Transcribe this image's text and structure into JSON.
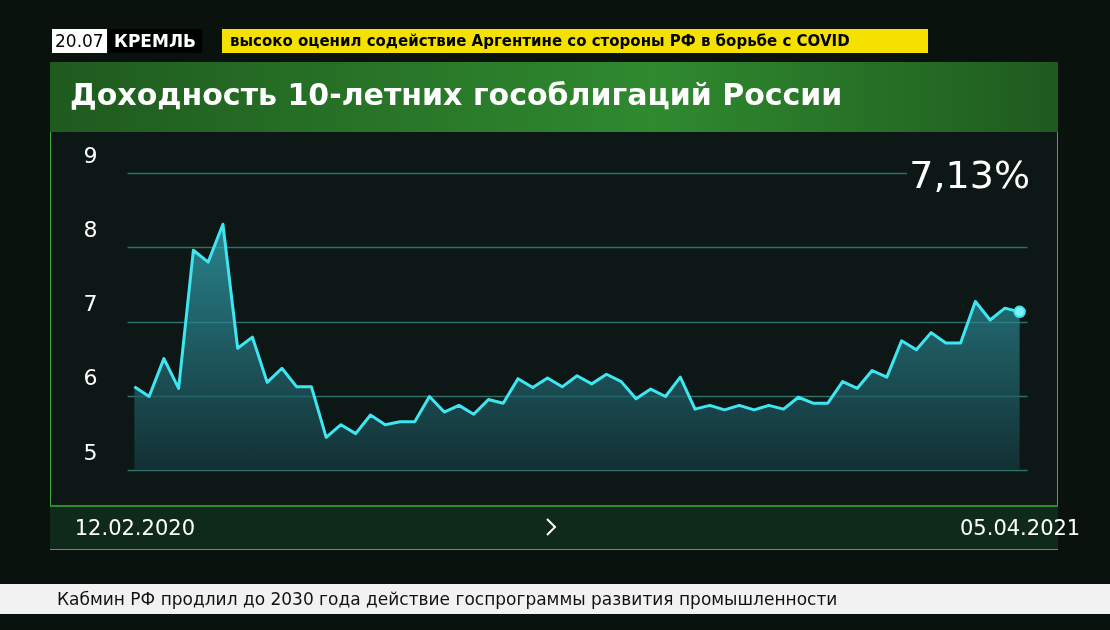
{
  "chart_data": {
    "type": "area",
    "title": "Доходность 10-летних гособлигаций России",
    "categories": [
      "12.02.2020",
      null,
      null,
      null,
      null,
      null,
      null,
      null,
      null,
      null,
      null,
      null,
      null,
      null,
      null,
      null,
      null,
      null,
      null,
      null,
      null,
      null,
      null,
      null,
      null,
      null,
      null,
      null,
      null,
      null,
      null,
      null,
      null,
      null,
      null,
      null,
      null,
      null,
      null,
      null,
      null,
      null,
      null,
      null,
      null,
      null,
      null,
      null,
      null,
      null,
      null,
      null,
      null,
      null,
      null,
      null,
      null,
      null,
      null,
      null,
      "05.04.2021"
    ],
    "series": [
      {
        "color": "#3ee6f2",
        "values": [
          6.12,
          5.99,
          6.5,
          6.1,
          7.96,
          7.8,
          8.31,
          6.64,
          6.79,
          6.18,
          6.37,
          6.12,
          6.12,
          5.44,
          5.61,
          5.49,
          5.74,
          5.61,
          5.65,
          5.65,
          5.99,
          5.78,
          5.87,
          5.75,
          5.95,
          5.9,
          6.23,
          6.11,
          6.24,
          6.12,
          6.27,
          6.16,
          6.29,
          6.19,
          5.96,
          6.09,
          5.99,
          6.25,
          5.82,
          5.87,
          5.81,
          5.87,
          5.81,
          5.87,
          5.82,
          5.98,
          5.9,
          5.9,
          6.19,
          6.1,
          6.34,
          6.25,
          6.74,
          6.62,
          6.85,
          6.71,
          6.71,
          7.27,
          7.02,
          7.18,
          7.13
        ]
      }
    ],
    "ylim": [
      5,
      9
    ],
    "yticks": [
      5,
      6,
      7,
      8,
      9
    ],
    "grid": "y",
    "annotations": [
      "7,13%",
      "20.07",
      "КРЕМЛЬ",
      "высоко оценил содействие Аргентине со стороны РФ в борьбе с COVID",
      "Кабмин РФ продлил до 2030 года действие госпрограммы развития промышленности"
    ]
  }
}
